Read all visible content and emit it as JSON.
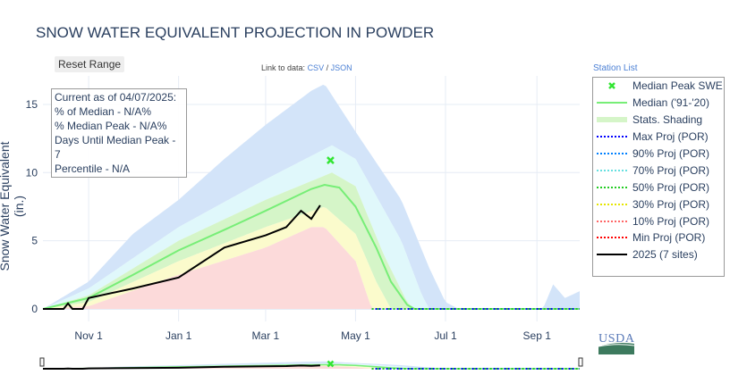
{
  "title": "SNOW WATER EQUIVALENT PROJECTION IN POWDER",
  "reset_label": "Reset Range",
  "link_prefix": "Link to data:",
  "link_csv": "CSV",
  "link_sep": "/",
  "link_json": "JSON",
  "station_list": "Station List",
  "info": [
    "Current as of 04/07/2025:",
    "% of Median - N/A%",
    "% Median Peak - N/A%",
    "Days Until Median Peak - 7",
    "Percentile - N/A"
  ],
  "logo_text": "USDA",
  "legend": [
    {
      "label": "Median Peak SWE",
      "color": "#33e533",
      "style": "x"
    },
    {
      "label": "Median ('91-'20)",
      "color": "#77ee77",
      "style": "line"
    },
    {
      "label": "Stats. Shading",
      "color": "#d5f5c8",
      "style": "band"
    },
    {
      "label": "Max Proj (POR)",
      "color": "#0000ff",
      "style": "dot"
    },
    {
      "label": "90% Proj (POR)",
      "color": "#0080ff",
      "style": "dot"
    },
    {
      "label": "70% Proj (POR)",
      "color": "#66e0e0",
      "style": "dot"
    },
    {
      "label": "50% Proj (POR)",
      "color": "#22cc22",
      "style": "dot"
    },
    {
      "label": "30% Proj (POR)",
      "color": "#e5e500",
      "style": "dot"
    },
    {
      "label": "10% Proj (POR)",
      "color": "#ff6666",
      "style": "dot"
    },
    {
      "label": "Min Proj (POR)",
      "color": "#ff0000",
      "style": "dot"
    },
    {
      "label": "2025 (7 sites)",
      "color": "#000000",
      "style": "line"
    }
  ],
  "chart_data": {
    "type": "line",
    "title": "SNOW WATER EQUIVALENT PROJECTION IN POWDER",
    "ylabel": "Snow Water Equivalent (in.)",
    "ylim": [
      0,
      17
    ],
    "xlim": [
      "2024-10-01",
      "2025-09-30"
    ],
    "yticks": [
      0,
      5,
      10,
      15
    ],
    "xticks": [
      {
        "d": "2024-11-01",
        "label": "Nov 1"
      },
      {
        "d": "2025-01-01",
        "label": "Jan 1"
      },
      {
        "d": "2025-03-01",
        "label": "Mar 1"
      },
      {
        "d": "2025-05-01",
        "label": "May 1"
      },
      {
        "d": "2025-07-01",
        "label": "Jul 1"
      },
      {
        "d": "2025-09-01",
        "label": "Sep 1"
      }
    ],
    "median_peak": {
      "date": "2025-04-14",
      "value": 10.9
    },
    "median": [
      [
        "2024-10-01",
        0
      ],
      [
        "2024-11-01",
        0.8
      ],
      [
        "2024-12-01",
        2.5
      ],
      [
        "2025-01-01",
        4.3
      ],
      [
        "2025-02-01",
        5.8
      ],
      [
        "2025-03-01",
        7.2
      ],
      [
        "2025-04-01",
        8.8
      ],
      [
        "2025-04-10",
        9.1
      ],
      [
        "2025-04-20",
        8.9
      ],
      [
        "2025-05-01",
        7.5
      ],
      [
        "2025-05-15",
        4.5
      ],
      [
        "2025-05-25",
        2
      ],
      [
        "2025-06-05",
        0.3
      ],
      [
        "2025-06-10",
        0
      ],
      [
        "2025-09-30",
        0
      ]
    ],
    "max": [
      [
        "2024-10-01",
        0
      ],
      [
        "2024-11-01",
        2
      ],
      [
        "2024-12-01",
        5.5
      ],
      [
        "2025-01-01",
        8
      ],
      [
        "2025-02-01",
        11
      ],
      [
        "2025-03-01",
        13.5
      ],
      [
        "2025-04-01",
        16
      ],
      [
        "2025-04-10",
        16.5
      ],
      [
        "2025-05-01",
        13
      ],
      [
        "2025-06-01",
        8
      ],
      [
        "2025-06-20",
        3
      ],
      [
        "2025-07-01",
        0.5
      ],
      [
        "2025-07-10",
        0
      ],
      [
        "2025-09-05",
        0
      ],
      [
        "2025-09-12",
        1.8
      ],
      [
        "2025-09-20",
        0.8
      ],
      [
        "2025-09-30",
        1.3
      ]
    ],
    "p90": [
      [
        "2024-10-01",
        0
      ],
      [
        "2024-11-01",
        1.5
      ],
      [
        "2025-01-01",
        6
      ],
      [
        "2025-03-01",
        9.5
      ],
      [
        "2025-04-15",
        12
      ],
      [
        "2025-05-01",
        11
      ],
      [
        "2025-06-01",
        5
      ],
      [
        "2025-06-15",
        1
      ],
      [
        "2025-06-20",
        0
      ],
      [
        "2025-09-30",
        0
      ]
    ],
    "p70": [
      [
        "2024-10-01",
        0
      ],
      [
        "2024-11-01",
        1
      ],
      [
        "2025-01-01",
        5
      ],
      [
        "2025-03-01",
        8
      ],
      [
        "2025-04-15",
        10
      ],
      [
        "2025-05-01",
        9
      ],
      [
        "2025-05-20",
        4
      ],
      [
        "2025-06-05",
        0.5
      ],
      [
        "2025-06-10",
        0
      ],
      [
        "2025-09-30",
        0
      ]
    ],
    "p30": [
      [
        "2024-10-01",
        0
      ],
      [
        "2024-11-01",
        0.5
      ],
      [
        "2025-01-01",
        3.5
      ],
      [
        "2025-03-01",
        6
      ],
      [
        "2025-04-10",
        7.5
      ],
      [
        "2025-05-01",
        5.5
      ],
      [
        "2025-05-15",
        2
      ],
      [
        "2025-05-25",
        0
      ],
      [
        "2025-09-30",
        0
      ]
    ],
    "p10": [
      [
        "2024-10-01",
        0
      ],
      [
        "2024-11-01",
        0.2
      ],
      [
        "2025-01-01",
        2.5
      ],
      [
        "2025-03-01",
        4.5
      ],
      [
        "2025-04-01",
        6
      ],
      [
        "2025-04-10",
        6
      ],
      [
        "2025-05-01",
        3.5
      ],
      [
        "2025-05-12",
        0
      ],
      [
        "2025-09-30",
        0
      ]
    ],
    "min": [
      [
        "2024-10-01",
        0
      ],
      [
        "2025-09-30",
        0
      ]
    ],
    "current": [
      [
        "2024-10-01",
        0
      ],
      [
        "2024-10-15",
        0
      ],
      [
        "2024-10-18",
        0.4
      ],
      [
        "2024-10-21",
        0
      ],
      [
        "2024-10-28",
        0
      ],
      [
        "2024-11-01",
        0.8
      ],
      [
        "2024-12-01",
        1.5
      ],
      [
        "2025-01-01",
        2.3
      ],
      [
        "2025-02-01",
        4.5
      ],
      [
        "2025-03-01",
        5.4
      ],
      [
        "2025-03-15",
        6
      ],
      [
        "2025-03-25",
        7.2
      ],
      [
        "2025-04-01",
        6.6
      ],
      [
        "2025-04-07",
        7.6
      ]
    ],
    "projection_start": "2025-05-12"
  }
}
